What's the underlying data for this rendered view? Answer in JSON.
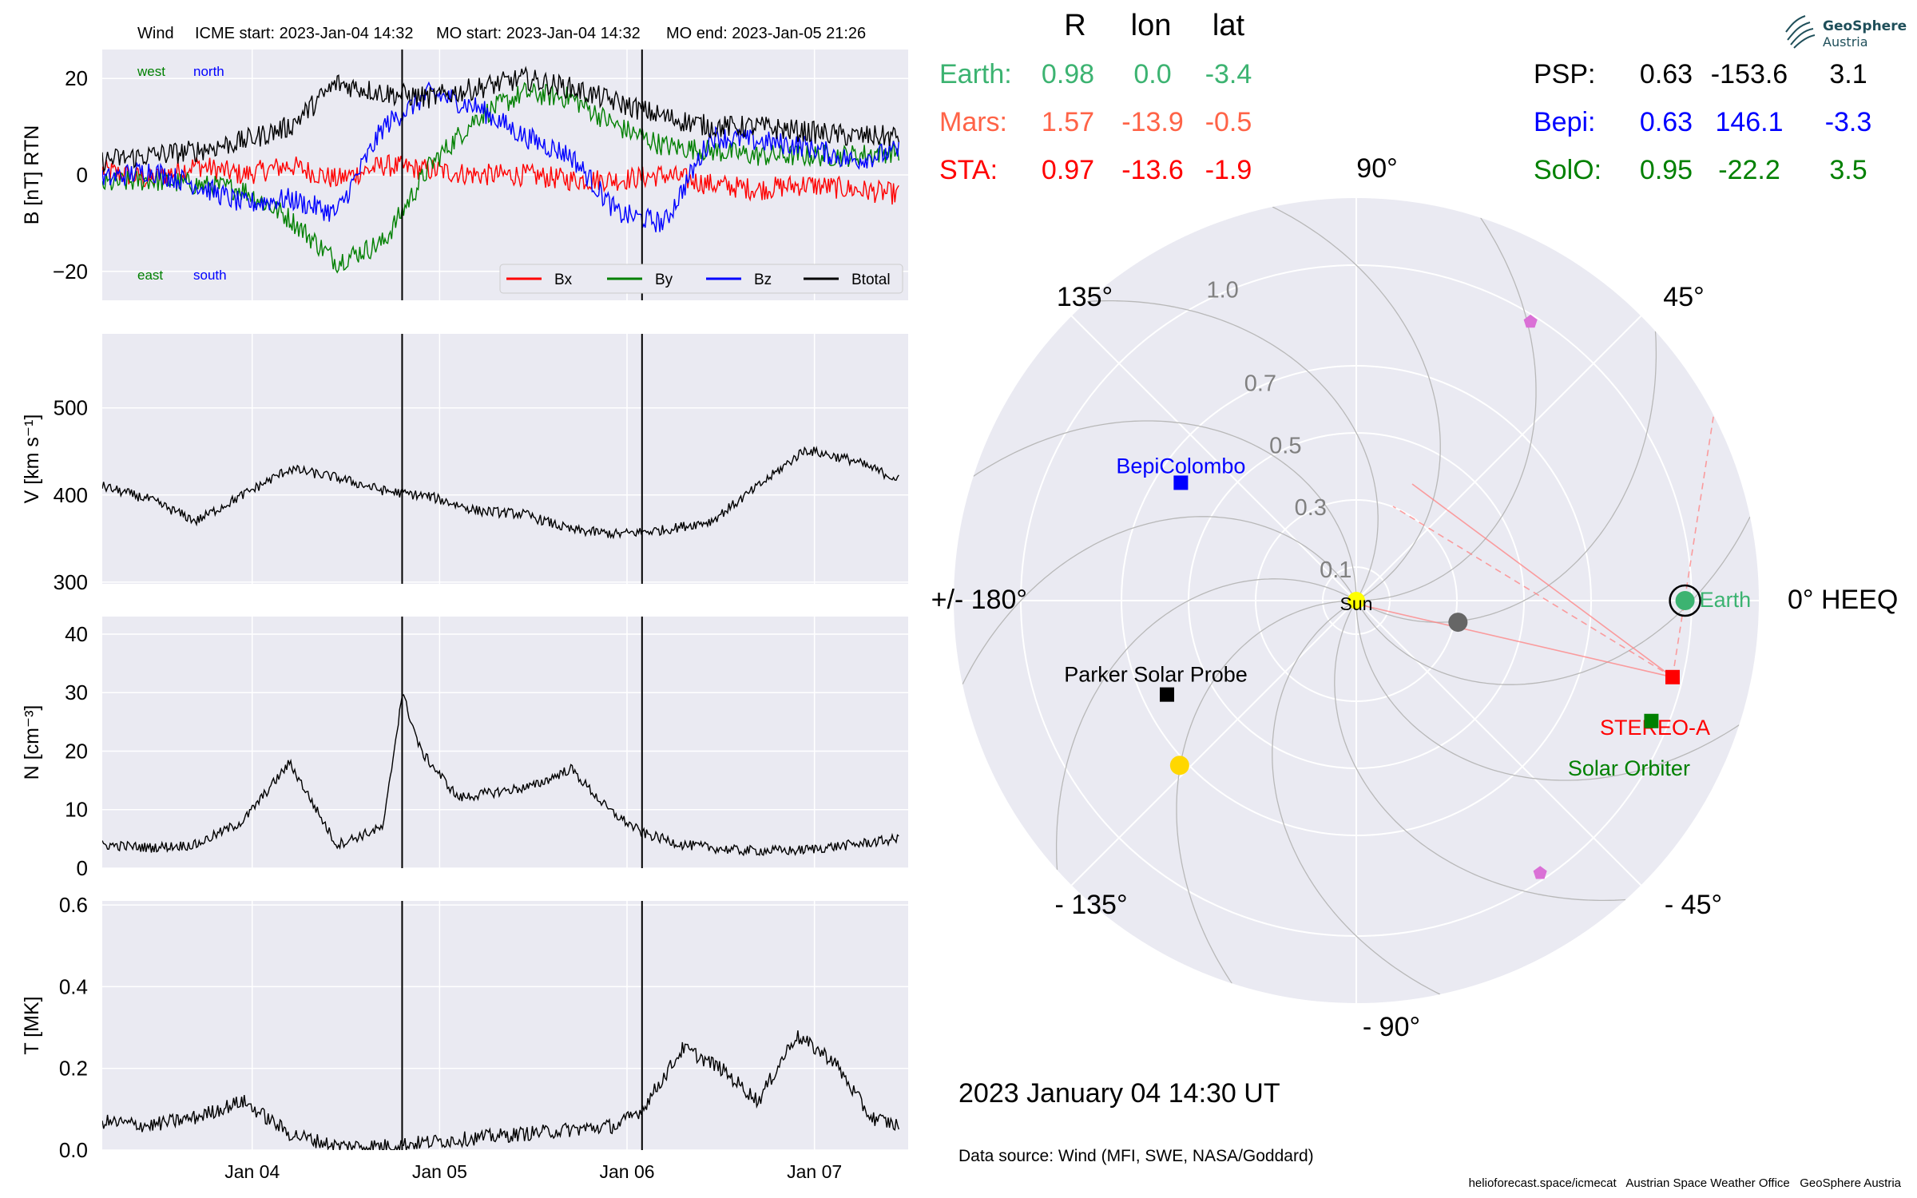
{
  "header": {
    "instrument": "Wind",
    "icme_start": "ICME start: 2023-Jan-04 14:32",
    "mo_start": "MO start: 2023-Jan-04 14:32",
    "mo_end": "MO end: 2023-Jan-05 21:26"
  },
  "logo": {
    "line1": "GeoSphere",
    "line2": "Austria"
  },
  "positions_table": {
    "headers": [
      "R",
      "lon",
      "lat"
    ],
    "left": [
      {
        "name": "Earth:",
        "R": "0.98",
        "lon": "0.0",
        "lat": "-3.4",
        "color": "#3cb371"
      },
      {
        "name": "Mars:",
        "R": "1.57",
        "lon": "-13.9",
        "lat": "-0.5",
        "color": "#ff6347"
      },
      {
        "name": "STA:",
        "R": "0.97",
        "lon": "-13.6",
        "lat": "-1.9",
        "color": "#ff0000"
      }
    ],
    "right": [
      {
        "name": "PSP:",
        "R": "0.63",
        "lon": "-153.6",
        "lat": "3.1",
        "color": "#000000"
      },
      {
        "name": "Bepi:",
        "R": "0.63",
        "lon": "146.1",
        "lat": "-3.3",
        "color": "#0000ff"
      },
      {
        "name": "SolO:",
        "R": "0.95",
        "lon": "-22.2",
        "lat": "3.5",
        "color": "#008000"
      }
    ]
  },
  "polar": {
    "angle_labels": {
      "a90": "90°",
      "a135": "135°",
      "a45": "45°",
      "a180": "+/- 180°",
      "a0": "0° HEEQ",
      "am135": "- 135°",
      "am45": "- 45°",
      "am90": "- 90°"
    },
    "radial_ticks": [
      "0.1",
      "0.3",
      "0.5",
      "0.7",
      "1.0"
    ],
    "radial_tick_values": [
      0.1,
      0.3,
      0.5,
      0.7,
      1.0
    ],
    "rmax": 1.2,
    "objects": [
      {
        "label": "Sun",
        "r": 0,
        "lon": 0,
        "color": "#ffff00",
        "marker": "circle"
      },
      {
        "label": "Earth",
        "r": 0.98,
        "lon": 0.0,
        "color": "#3cb371",
        "marker": "circle"
      },
      {
        "label": "STEREO-A",
        "r": 0.97,
        "lon": -13.6,
        "color": "#ff0000",
        "marker": "square"
      },
      {
        "label": "Solar Orbiter",
        "r": 0.95,
        "lon": -22.2,
        "color": "#008000",
        "marker": "square"
      },
      {
        "label": "BepiColombo",
        "r": 0.63,
        "lon": 146.1,
        "color": "#0000ff",
        "marker": "square"
      },
      {
        "label": "Parker Solar Probe",
        "r": 0.63,
        "lon": -153.6,
        "color": "#000000",
        "marker": "square"
      }
    ],
    "extra_markers": [
      {
        "r": 0.31,
        "lon": -12,
        "color": "#666666",
        "marker": "circle"
      },
      {
        "r": 0.72,
        "lon": -137,
        "color": "#ffd700",
        "marker": "circle"
      },
      {
        "r": 0.98,
        "lon": 58,
        "color": "#da70d6",
        "marker": "pentagon"
      },
      {
        "r": 0.98,
        "lon": -56,
        "color": "#da70d6",
        "marker": "pentagon"
      }
    ]
  },
  "datetime": "2023 January 04  14:30 UT",
  "data_source": "Data source: Wind (MFI, SWE, NASA/Goddard)",
  "footer": "helioforecast.space/icmecat   Austrian Space Weather Office   GeoSphere Austria",
  "chart_data": [
    {
      "type": "line",
      "ylabel": "B [nT] RTN",
      "ylim": [
        -26,
        26
      ],
      "yticks": [
        20,
        0,
        -20
      ],
      "ytick_labels": [
        "20",
        "0",
        "−20"
      ],
      "x": [
        0,
        0.25,
        0.5,
        0.75,
        1,
        1.25,
        1.5,
        1.75,
        2,
        2.25,
        2.5,
        2.75,
        3,
        3.25,
        3.5,
        3.75,
        4,
        4.25
      ],
      "series": [
        {
          "name": "Bx",
          "color": "#ff0000",
          "values": [
            1,
            -1,
            2,
            0,
            2,
            -1,
            2,
            1,
            0,
            0,
            -1,
            -1,
            0,
            -2,
            -3,
            -2,
            -3,
            -4
          ]
        },
        {
          "name": "By",
          "color": "#008000",
          "values": [
            -2,
            -1,
            -2,
            -3,
            -9,
            -18,
            -14,
            2,
            12,
            17,
            16,
            10,
            6,
            5,
            4,
            4,
            4,
            5
          ]
        },
        {
          "name": "Bz",
          "color": "#0000ff",
          "values": [
            -1,
            1,
            -2,
            -6,
            -5,
            -8,
            10,
            17,
            14,
            8,
            4,
            -8,
            -10,
            8,
            7,
            6,
            3,
            5
          ]
        },
        {
          "name": "Btotal",
          "color": "#000000",
          "values": [
            3,
            4,
            5,
            7,
            10,
            19,
            17,
            16,
            18,
            20,
            18,
            15,
            12,
            10,
            10,
            9,
            8,
            8
          ]
        }
      ],
      "legend": [
        "Bx",
        "By",
        "Bz",
        "Btotal"
      ],
      "legend_position": "lower-right",
      "annotations": {
        "west": "west",
        "north": "north",
        "east": "east",
        "south": "south"
      },
      "vlines": [
        1.6,
        2.88
      ]
    },
    {
      "type": "line",
      "ylabel": "V [km s⁻¹]",
      "ylim": [
        298,
        585
      ],
      "yticks": [
        500,
        400,
        300
      ],
      "ytick_labels": [
        "500",
        "400",
        "300"
      ],
      "x": [
        0,
        0.25,
        0.5,
        0.75,
        1,
        1.25,
        1.5,
        1.75,
        2,
        2.25,
        2.5,
        2.75,
        3,
        3.25,
        3.5,
        3.75,
        4,
        4.25
      ],
      "series": [
        {
          "name": "V",
          "color": "#000000",
          "values": [
            410,
            395,
            370,
            400,
            430,
            420,
            405,
            398,
            382,
            378,
            360,
            355,
            360,
            370,
            410,
            452,
            440,
            418
          ]
        }
      ],
      "vlines": [
        1.6,
        2.88
      ]
    },
    {
      "type": "line",
      "ylabel": "N [cm⁻³]",
      "ylim": [
        0,
        43
      ],
      "yticks": [
        40,
        30,
        20,
        10,
        0
      ],
      "ytick_labels": [
        "40",
        "30",
        "20",
        "10",
        "0"
      ],
      "x": [
        0,
        0.25,
        0.5,
        0.75,
        1,
        1.25,
        1.5,
        1.6,
        1.7,
        1.9,
        2.1,
        2.3,
        2.5,
        2.7,
        2.88,
        3.1,
        3.4,
        3.7,
        4.0,
        4.25
      ],
      "series": [
        {
          "name": "N",
          "color": "#000000",
          "values": [
            4,
            3.5,
            4,
            8,
            18,
            4,
            7,
            30,
            20,
            12,
            13,
            14,
            17,
            10,
            6,
            4,
            3,
            3,
            4,
            5
          ]
        }
      ],
      "vlines": [
        1.6,
        2.88
      ]
    },
    {
      "type": "line",
      "ylabel": "T [MK]",
      "ylim": [
        0,
        0.61
      ],
      "yticks": [
        0.6,
        0.4,
        0.2,
        0.0
      ],
      "ytick_labels": [
        "0.6",
        "0.4",
        "0.2",
        "0.0"
      ],
      "xtick_positions": [
        0.8,
        1.8,
        2.8,
        3.8
      ],
      "xtick_labels": [
        "Jan 04",
        "Jan 05",
        "Jan 06",
        "Jan 07"
      ],
      "x": [
        0,
        0.25,
        0.5,
        0.75,
        1,
        1.25,
        1.5,
        1.75,
        2,
        2.25,
        2.5,
        2.75,
        2.88,
        3.1,
        3.3,
        3.5,
        3.7,
        3.9,
        4.1,
        4.25
      ],
      "series": [
        {
          "name": "T",
          "color": "#000000",
          "values": [
            0.07,
            0.06,
            0.08,
            0.12,
            0.04,
            0.01,
            0.01,
            0.02,
            0.03,
            0.04,
            0.05,
            0.06,
            0.1,
            0.25,
            0.2,
            0.12,
            0.28,
            0.22,
            0.08,
            0.06
          ]
        }
      ],
      "vlines": [
        1.6,
        2.88
      ]
    }
  ]
}
